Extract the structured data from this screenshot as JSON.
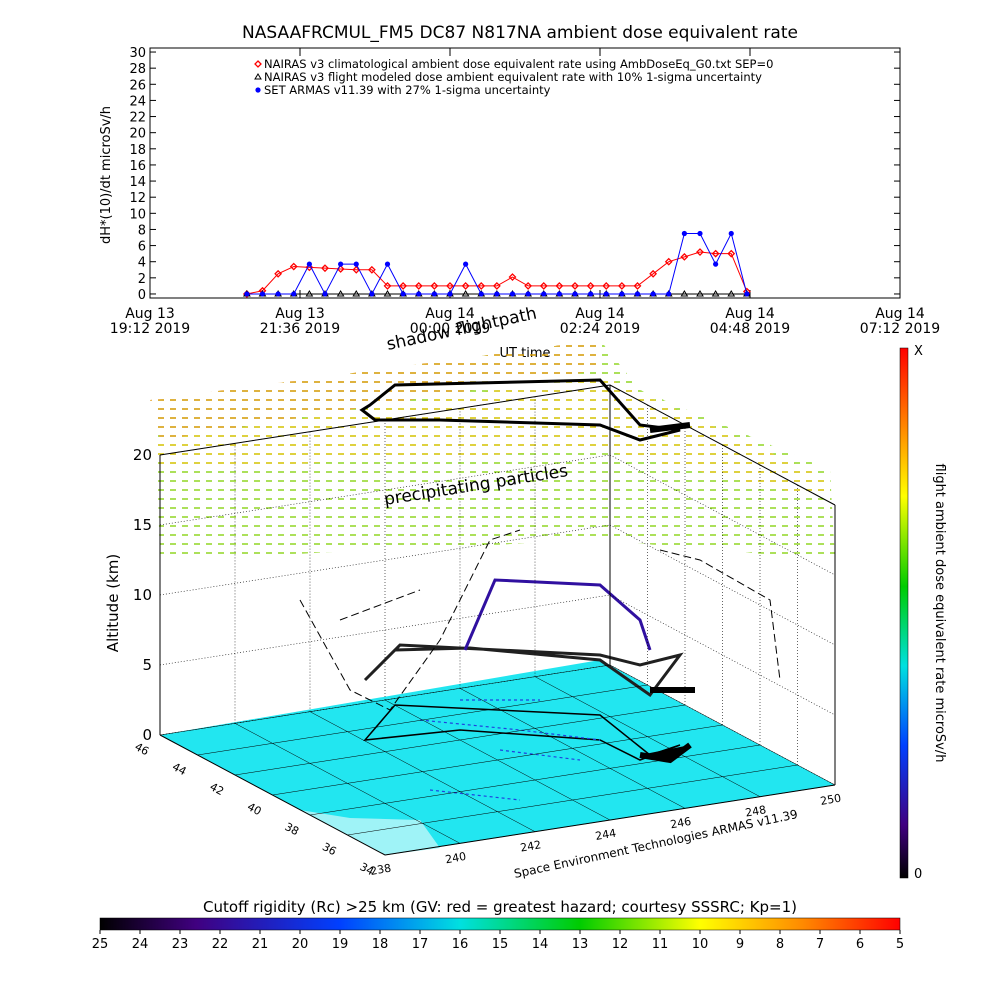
{
  "chart_data": [
    {
      "type": "line",
      "title": "NASAAFRCMUL_FM5 DC87 N817NA ambient dose equivalent rate",
      "ylabel": "dH*(10)/dt microSv/h",
      "xlabel": "UT time",
      "x": [
        "2019-08-13T20:45",
        "2019-08-13T21:00",
        "2019-08-13T21:15",
        "2019-08-13T21:30",
        "2019-08-13T21:45",
        "2019-08-13T22:00",
        "2019-08-13T22:15",
        "2019-08-13T22:30",
        "2019-08-13T22:45",
        "2019-08-13T23:00",
        "2019-08-13T23:15",
        "2019-08-13T23:30",
        "2019-08-13T23:45",
        "2019-08-14T00:00",
        "2019-08-14T00:15",
        "2019-08-14T00:30",
        "2019-08-14T00:45",
        "2019-08-14T01:00",
        "2019-08-14T01:15",
        "2019-08-14T01:30",
        "2019-08-14T01:45",
        "2019-08-14T02:00",
        "2019-08-14T02:15",
        "2019-08-14T02:30",
        "2019-08-14T02:45",
        "2019-08-14T03:00",
        "2019-08-14T03:15",
        "2019-08-14T03:30",
        "2019-08-14T03:45",
        "2019-08-14T04:00",
        "2019-08-14T04:15",
        "2019-08-14T04:30",
        "2019-08-14T04:45"
      ],
      "xlim": [
        "2019-08-13T19:12",
        "2019-08-14T07:12"
      ],
      "xticks": [
        {
          "value": "2019-08-13T19:12",
          "label": "Aug 13\n19:12 2019"
        },
        {
          "value": "2019-08-13T21:36",
          "label": "Aug 13\n21:36 2019"
        },
        {
          "value": "2019-08-14T00:00",
          "label": "Aug 14\n00:00 2019"
        },
        {
          "value": "2019-08-14T02:24",
          "label": "Aug 14\n02:24 2019"
        },
        {
          "value": "2019-08-14T04:48",
          "label": "Aug 14\n04:48 2019"
        },
        {
          "value": "2019-08-14T07:12",
          "label": "Aug 14\n07:12 2019"
        }
      ],
      "ylim": [
        -0.5,
        30.5
      ],
      "yticks": [
        0,
        2,
        4,
        6,
        8,
        10,
        12,
        14,
        16,
        18,
        20,
        22,
        24,
        26,
        28,
        30
      ],
      "series": [
        {
          "name": "NAIRAS v3 climatological ambient dose equivalent rate using AmbDoseEq_G0.txt SEP=0",
          "color": "#ff0000",
          "marker": "diamond",
          "values": [
            0,
            0.4,
            2.5,
            3.4,
            3.3,
            3.2,
            3.1,
            3.0,
            3.0,
            1.0,
            1.0,
            1.0,
            1.0,
            1.0,
            1.0,
            1.0,
            1.0,
            2.1,
            1.0,
            1.0,
            1.0,
            1.0,
            1.0,
            1.0,
            1.0,
            1.0,
            2.5,
            4.0,
            4.6,
            5.2,
            5.0,
            5.0,
            0.3
          ]
        },
        {
          "name": "NAIRAS v3 flight modeled dose ambient equivalent rate with 10% 1-sigma uncertainty",
          "color": "#000000",
          "marker": "triangle",
          "values": [
            0,
            0,
            0,
            0,
            0,
            0,
            0,
            0,
            0,
            0,
            0,
            0,
            0,
            0,
            0,
            0,
            0,
            0,
            0,
            0,
            0,
            0,
            0,
            0,
            0,
            0,
            0,
            0,
            0,
            0,
            0,
            0,
            0
          ]
        },
        {
          "name": "SET ARMAS v11.39 with 27% 1-sigma uncertainty",
          "color": "#0000ff",
          "marker": "circle",
          "values": [
            0,
            0,
            0,
            0,
            3.7,
            0,
            3.7,
            3.7,
            0,
            3.7,
            0,
            0,
            0,
            0,
            3.7,
            0,
            0,
            0,
            0,
            0,
            0,
            0,
            0,
            0,
            0,
            0,
            0,
            0,
            7.5,
            7.5,
            3.7,
            7.5,
            0
          ]
        }
      ]
    },
    {
      "type": "surface3d",
      "zlabel": "Altitude (km)",
      "zlim": [
        0,
        20
      ],
      "zticks": [
        0,
        5,
        10,
        15,
        20
      ],
      "xlim": [
        238,
        250
      ],
      "xticks": [
        238,
        240,
        242,
        244,
        246,
        248,
        250
      ],
      "ylim": [
        34,
        46
      ],
      "yticks": [
        34,
        36,
        38,
        40,
        42,
        44,
        46
      ],
      "annotations": [
        "shadow flightpath",
        "precipitating particles",
        "Space Environment Technologies ARMAS v11.39"
      ],
      "colorbar": {
        "label": "flight ambient dose equivalent rate microSv/h",
        "top": "X",
        "bottom": 0
      },
      "rigidity": {
        "title": "Cutoff rigidity (Rc) >25 km (GV: red = greatest hazard; courtesy SSSRC; Kp=1)",
        "lim": [
          25,
          5
        ],
        "ticks": [
          25,
          24,
          23,
          22,
          21,
          20,
          19,
          18,
          17,
          16,
          15,
          14,
          13,
          12,
          11,
          10,
          9,
          8,
          7,
          6,
          5
        ]
      }
    }
  ]
}
